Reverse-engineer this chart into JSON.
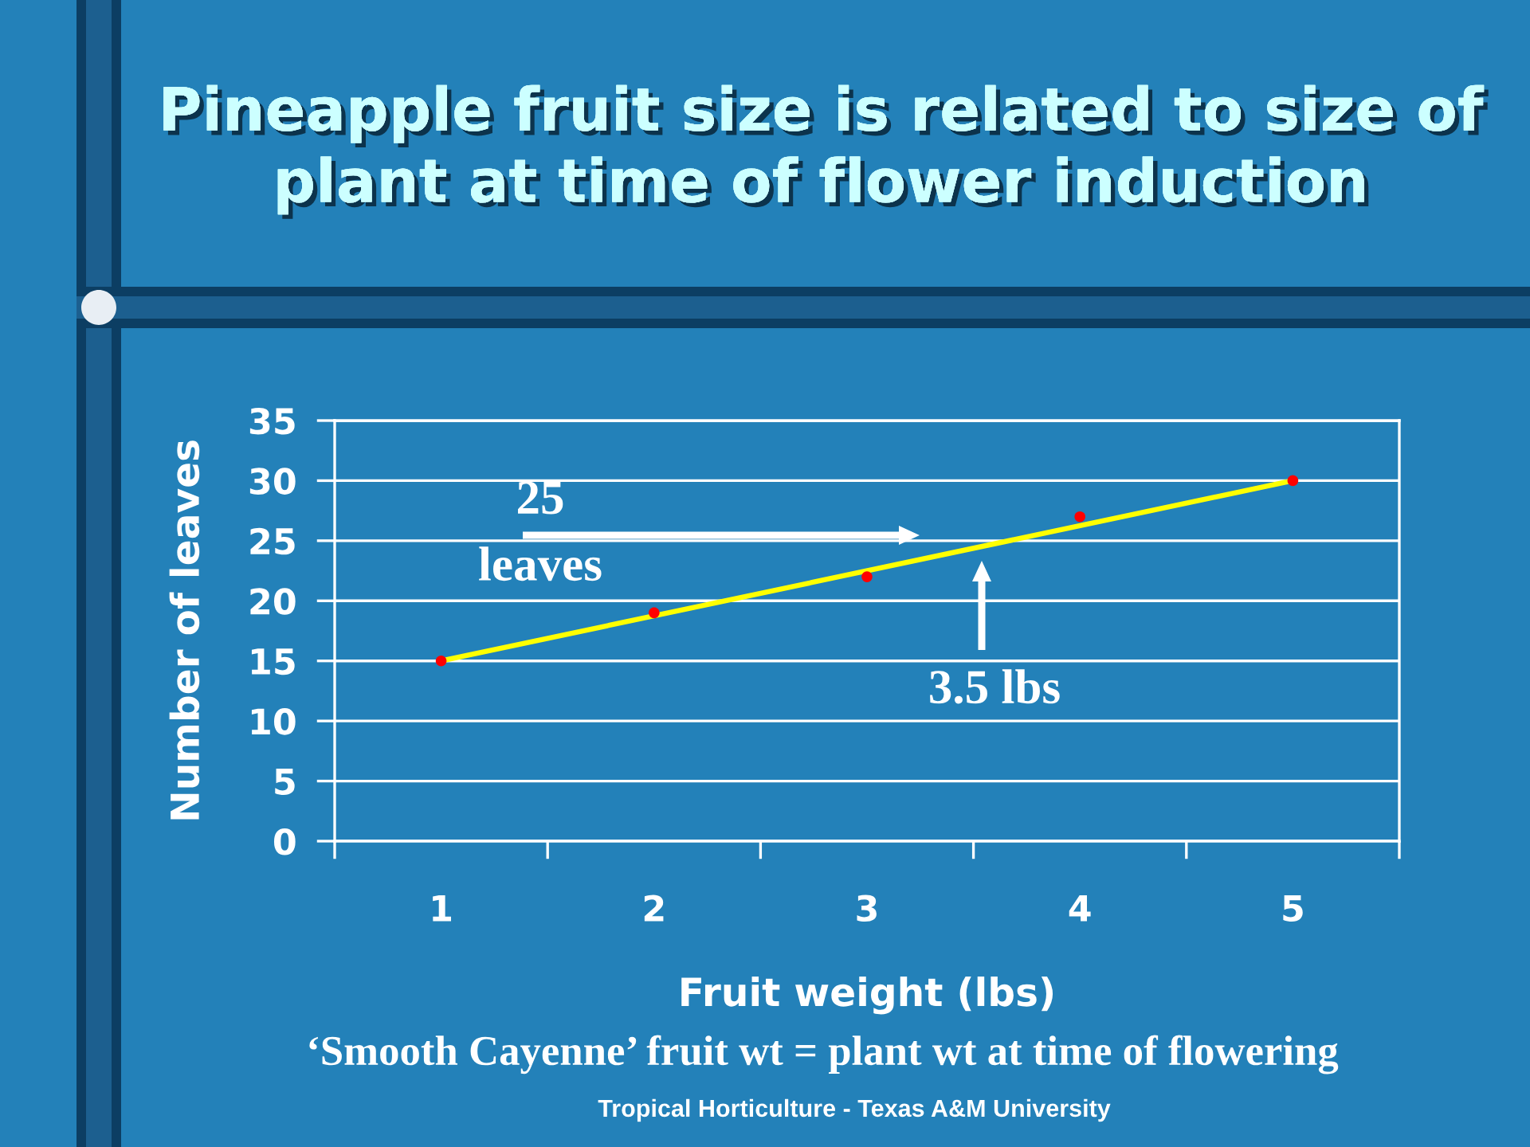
{
  "chart_data": {
    "type": "scatter",
    "title": "Pineapple fruit size is related to size of\nplant at time of flower induction",
    "xlabel": "Fruit weight (lbs)",
    "ylabel": "Number of leaves",
    "series": [
      {
        "type": "line",
        "color": "#ffff00",
        "x": [
          1,
          5
        ],
        "values": [
          15,
          30
        ]
      },
      {
        "color": "#ff0000",
        "marker": "circle",
        "x": [
          1,
          2,
          3,
          4,
          5
        ],
        "values": [
          15,
          19,
          22,
          27,
          30
        ]
      }
    ],
    "xlim": [
      0.5,
      5.5
    ],
    "xticks": [
      {
        "value": 0.5,
        "label": null
      },
      1,
      {
        "value": 1.5,
        "label": null
      },
      2,
      {
        "value": 2.5,
        "label": null
      },
      3,
      {
        "value": 3.5,
        "label": null
      },
      4,
      {
        "value": 4.5,
        "label": null
      },
      5,
      {
        "value": 5.5,
        "label": null
      }
    ],
    "ylim": [
      0,
      35
    ],
    "yticks": [
      0,
      5,
      10,
      15,
      20,
      25,
      30,
      35
    ],
    "grid": "y",
    "annotations": [
      "25\nleaves",
      "3.5 lbs",
      "‘Smooth Cayenne’ fruit wt = plant wt at time of flowering",
      "Tropical Horticulture - Texas A&M University"
    ]
  }
}
